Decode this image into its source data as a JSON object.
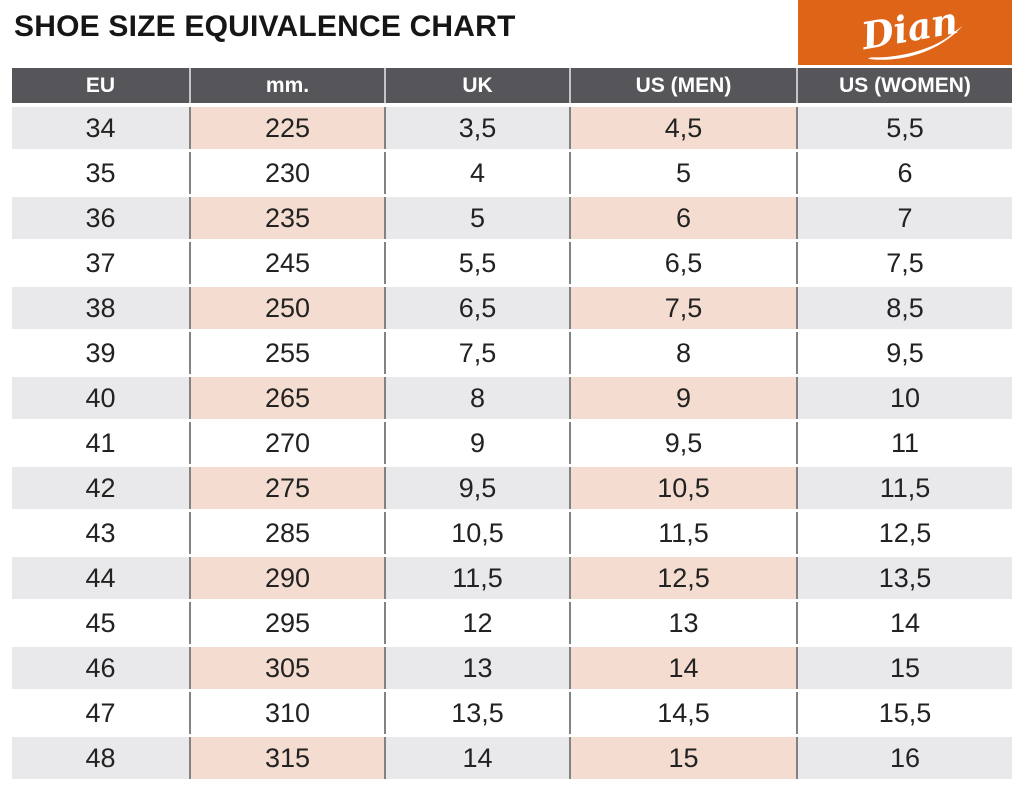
{
  "header": {
    "title": "SHOE SIZE EQUIVALENCE CHART",
    "brand": "Dian"
  },
  "colors": {
    "brand_orange": "#de6418",
    "header_gray": "#56565a",
    "stripe_gray": "#e9e8ea",
    "stripe_pink": "#f4ddd0",
    "divider_dark": "#828282",
    "divider_light": "#c6c4c6",
    "text_dark": "#222222",
    "header_text": "#ffffff"
  },
  "chart_data": {
    "type": "table",
    "title": "SHOE SIZE EQUIVALENCE CHART",
    "columns": [
      "EU",
      "mm.",
      "UK",
      "US (MEN)",
      "US (WOMEN)"
    ],
    "rows": [
      [
        "34",
        "225",
        "3,5",
        "4,5",
        "5,5"
      ],
      [
        "35",
        "230",
        "4",
        "5",
        "6"
      ],
      [
        "36",
        "235",
        "5",
        "6",
        "7"
      ],
      [
        "37",
        "245",
        "5,5",
        "6,5",
        "7,5"
      ],
      [
        "38",
        "250",
        "6,5",
        "7,5",
        "8,5"
      ],
      [
        "39",
        "255",
        "7,5",
        "8",
        "9,5"
      ],
      [
        "40",
        "265",
        "8",
        "9",
        "10"
      ],
      [
        "41",
        "270",
        "9",
        "9,5",
        "11"
      ],
      [
        "42",
        "275",
        "9,5",
        "10,5",
        "11,5"
      ],
      [
        "43",
        "285",
        "10,5",
        "11,5",
        "12,5"
      ],
      [
        "44",
        "290",
        "11,5",
        "12,5",
        "13,5"
      ],
      [
        "45",
        "295",
        "12",
        "13",
        "14"
      ],
      [
        "46",
        "305",
        "13",
        "14",
        "15"
      ],
      [
        "47",
        "310",
        "13,5",
        "14,5",
        "15,5"
      ],
      [
        "48",
        "315",
        "14",
        "15",
        "16"
      ]
    ],
    "striped_row_indices": [
      0,
      2,
      4,
      6,
      8,
      10,
      12,
      14
    ],
    "accent_column_indices": [
      1,
      3
    ],
    "legend_position": "none",
    "grid": "column-dividers"
  }
}
